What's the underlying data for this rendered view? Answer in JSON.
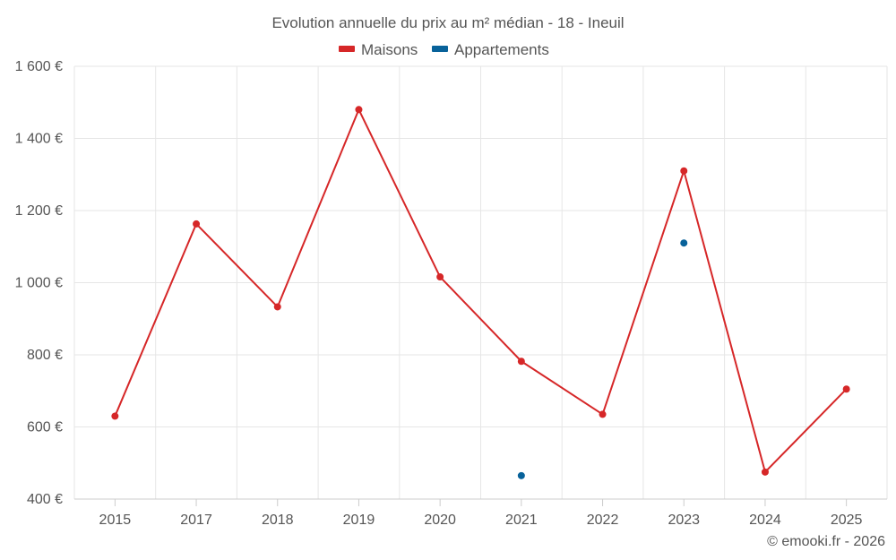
{
  "chart_data": {
    "type": "line",
    "title": "Evolution annuelle du prix au m² médian - 18 - Ineuil",
    "categories": [
      "2015",
      "2017",
      "2018",
      "2019",
      "2020",
      "2021",
      "2022",
      "2023",
      "2024",
      "2025"
    ],
    "series": [
      {
        "name": "Maisons",
        "color": "#d62728",
        "values": [
          630,
          1163,
          933,
          1480,
          1016,
          782,
          635,
          1310,
          475,
          705
        ]
      },
      {
        "name": "Appartements",
        "color": "#08629a",
        "values": [
          null,
          null,
          null,
          null,
          null,
          465,
          null,
          1110,
          null,
          null
        ]
      }
    ],
    "ylim": [
      400,
      1600
    ],
    "yticks": [
      400,
      600,
      800,
      1000,
      1200,
      1400,
      1600
    ],
    "ytick_labels": [
      "400 €",
      "600 €",
      "800 €",
      "1 000 €",
      "1 200 €",
      "1 400 €",
      "1 600 €"
    ],
    "xlabel": "",
    "ylabel": "",
    "grid": true,
    "legend_position": "top-center"
  },
  "credit": "© emooki.fr - 2026"
}
